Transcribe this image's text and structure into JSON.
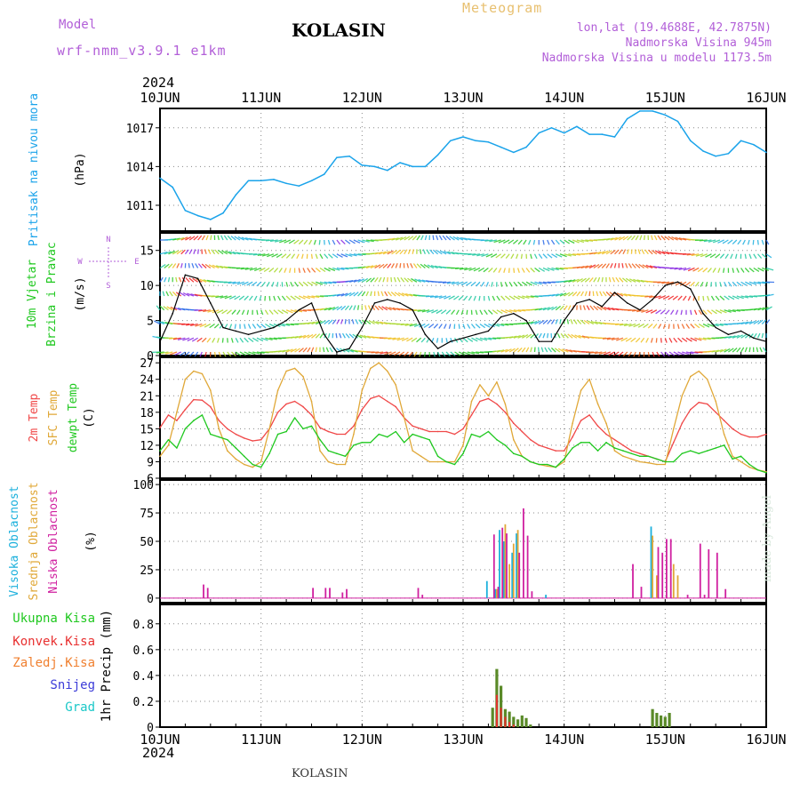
{
  "header": {
    "model_label": "Model",
    "model_name": "wrf-nmm_v3.9.1  e1km",
    "station": "KOLASIN",
    "product": "Meteogram",
    "lonlat": "lon,lat (19.4688E, 42.7875N)",
    "elevation": "Nadmorska Visina 945m",
    "model_elevation": "Nadmorska Visina u modelu 1173.5m",
    "year": "2024",
    "footer_station": "KOLASIN",
    "credit": "made by Angel"
  },
  "colors": {
    "pressure": "#1aa3ea",
    "wind_speed": "#000000",
    "temp_2m": "#f04848",
    "temp_sfc": "#e0a838",
    "dewpoint": "#1fc81f",
    "cloud_high": "#1bb0dc",
    "cloud_mid": "#e0a838",
    "cloud_low": "#d020a0",
    "precip_total": "#5a8a28",
    "precip_conv": "#e83030",
    "axis_label_purple": "#b25fd8",
    "grid": "#888888"
  },
  "chart_data": [
    {
      "id": "pressure",
      "type": "line",
      "title": "",
      "ylabel_lines": [
        "Pritisak na nivou mora",
        "(hPa)"
      ],
      "x_ticks": [
        "10JUN",
        "11JUN",
        "12JUN",
        "13JUN",
        "14JUN",
        "15JUN",
        "16JUN"
      ],
      "ylim": [
        1009,
        1018.5
      ],
      "yticks": [
        1011,
        1014,
        1017
      ],
      "grid": true,
      "series": [
        {
          "values_x_hours": [
            0,
            3,
            6,
            9,
            12,
            15,
            18,
            21,
            24,
            27,
            30,
            33,
            36,
            39,
            42,
            45,
            48,
            51,
            54,
            57,
            60,
            63,
            66,
            69,
            72,
            75,
            78,
            81,
            84,
            87,
            90,
            93,
            96,
            99,
            102,
            105,
            108,
            111,
            114,
            117,
            120,
            123,
            126,
            129,
            132,
            135,
            138,
            141,
            144
          ],
          "values": [
            1013.1,
            1012.4,
            1010.6,
            1010.2,
            1009.9,
            1010.4,
            1011.8,
            1012.9,
            1012.9,
            1013.0,
            1012.7,
            1012.5,
            1012.9,
            1013.4,
            1014.7,
            1014.8,
            1014.1,
            1014.0,
            1013.7,
            1014.3,
            1014.0,
            1014.0,
            1014.9,
            1016.0,
            1016.3,
            1016.0,
            1015.9,
            1015.5,
            1015.1,
            1015.5,
            1016.6,
            1017.0,
            1016.6,
            1017.1,
            1016.5,
            1016.5,
            1016.3,
            1017.7,
            1018.3,
            1018.3,
            1018.0,
            1017.5,
            1016.0,
            1015.2,
            1014.8,
            1015.0,
            1016.0,
            1015.7,
            1015.1
          ]
        }
      ]
    },
    {
      "id": "wind",
      "type": "line",
      "ylabel_lines": [
        "10m Vjetar",
        "Brzina i Pravac",
        "(m/s)"
      ],
      "compass": {
        "north": "N",
        "west": "W",
        "east": "E",
        "south": "S"
      },
      "ylim": [
        0,
        17.5
      ],
      "yticks": [
        0,
        5,
        10,
        15
      ],
      "grid": true,
      "series": [
        {
          "name": "speed",
          "values_x_hours": [
            0,
            3,
            6,
            9,
            12,
            15,
            18,
            21,
            24,
            27,
            30,
            33,
            36,
            39,
            42,
            45,
            48,
            51,
            54,
            57,
            60,
            63,
            66,
            69,
            72,
            75,
            78,
            81,
            84,
            87,
            90,
            93,
            96,
            99,
            102,
            105,
            108,
            111,
            114,
            117,
            120,
            123,
            126,
            129,
            132,
            135,
            138,
            141,
            144
          ],
          "values": [
            2.0,
            6.0,
            11.5,
            11.0,
            7.5,
            4.0,
            3.5,
            3.0,
            3.5,
            4.0,
            5.0,
            6.5,
            7.5,
            3.0,
            0.5,
            1.0,
            4.0,
            7.5,
            8.0,
            7.5,
            6.5,
            3.0,
            1.0,
            2.0,
            2.5,
            3.0,
            3.5,
            5.5,
            6.0,
            5.0,
            2.0,
            2.0,
            5.0,
            7.5,
            8.0,
            7.0,
            9.0,
            7.5,
            6.5,
            8.0,
            10.0,
            10.5,
            9.5,
            6.0,
            4.0,
            3.0,
            3.5,
            2.5,
            2.0
          ]
        }
      ]
    },
    {
      "id": "temperature",
      "type": "line",
      "ylabel_lines": [
        "2m Temp",
        "SFC Temp",
        "dewpt Temp",
        "(C)"
      ],
      "ylim": [
        6,
        28
      ],
      "yticks": [
        6,
        9,
        12,
        15,
        18,
        21,
        24,
        27
      ],
      "grid": true,
      "series": [
        {
          "name": "2m Temp",
          "values_x_hours": [
            0,
            2,
            4,
            6,
            8,
            10,
            12,
            14,
            16,
            18,
            20,
            22,
            24,
            26,
            28,
            30,
            32,
            34,
            36,
            38,
            40,
            42,
            44,
            46,
            48,
            50,
            52,
            54,
            56,
            58,
            60,
            62,
            64,
            66,
            68,
            70,
            72,
            74,
            76,
            78,
            80,
            82,
            84,
            86,
            88,
            90,
            92,
            94,
            96,
            98,
            100,
            102,
            104,
            106,
            108,
            110,
            112,
            114,
            116,
            118,
            120,
            122,
            124,
            126,
            128,
            130,
            132,
            134,
            136,
            138,
            140,
            142,
            144
          ],
          "values": [
            15.2,
            17.5,
            16.5,
            18.5,
            20.3,
            20.2,
            19.0,
            16.5,
            15.0,
            14.0,
            13.3,
            12.8,
            13.0,
            15.0,
            18.0,
            19.5,
            20.0,
            19.0,
            17.5,
            15.2,
            14.5,
            14.0,
            14.0,
            15.5,
            18.5,
            20.5,
            21.0,
            20.0,
            19.0,
            17.0,
            15.5,
            15.0,
            14.5,
            14.5,
            14.5,
            14.0,
            15.0,
            17.5,
            20.0,
            20.5,
            19.5,
            18.0,
            16.0,
            14.5,
            13.0,
            12.0,
            11.5,
            11.0,
            11.0,
            13.5,
            16.5,
            17.5,
            15.5,
            14.0,
            13.0,
            12.0,
            11.0,
            10.5,
            10.0,
            9.5,
            9.0,
            12.5,
            16.0,
            18.5,
            19.8,
            19.5,
            18.0,
            16.5,
            15.0,
            14.0,
            13.5,
            13.5,
            14.0
          ]
        },
        {
          "name": "SFC Temp",
          "values_x_hours": [
            0,
            2,
            4,
            6,
            8,
            10,
            12,
            14,
            16,
            18,
            20,
            22,
            24,
            26,
            28,
            30,
            32,
            34,
            36,
            38,
            40,
            42,
            44,
            46,
            48,
            50,
            52,
            54,
            56,
            58,
            60,
            62,
            64,
            66,
            68,
            70,
            72,
            74,
            76,
            78,
            80,
            82,
            84,
            86,
            88,
            90,
            92,
            94,
            96,
            98,
            100,
            102,
            104,
            106,
            108,
            110,
            112,
            114,
            116,
            118,
            120,
            122,
            124,
            126,
            128,
            130,
            132,
            134,
            136,
            138,
            140,
            142,
            144
          ],
          "values": [
            10.0,
            12.0,
            18.0,
            24.0,
            25.5,
            25.0,
            22.0,
            15.0,
            11.0,
            9.5,
            8.5,
            8.0,
            9.0,
            15.0,
            22.0,
            25.5,
            26.0,
            24.5,
            20.0,
            11.0,
            9.0,
            8.5,
            8.5,
            14.0,
            22.0,
            26.0,
            27.0,
            25.5,
            23.0,
            17.0,
            11.0,
            10.0,
            9.0,
            9.0,
            9.0,
            9.0,
            12.0,
            20.0,
            23.0,
            21.0,
            23.5,
            19.5,
            13.0,
            10.0,
            9.0,
            8.5,
            8.2,
            8.0,
            9.0,
            16.0,
            22.0,
            24.0,
            19.5,
            16.0,
            11.0,
            10.0,
            9.5,
            9.0,
            8.8,
            8.5,
            8.5,
            15.0,
            21.0,
            24.5,
            25.5,
            24.0,
            20.0,
            14.0,
            10.0,
            9.0,
            8.0,
            7.5,
            7.2
          ]
        },
        {
          "name": "dewpt Temp",
          "values_x_hours": [
            0,
            2,
            4,
            6,
            8,
            10,
            12,
            14,
            16,
            18,
            20,
            22,
            24,
            26,
            28,
            30,
            32,
            34,
            36,
            38,
            40,
            42,
            44,
            46,
            48,
            50,
            52,
            54,
            56,
            58,
            60,
            62,
            64,
            66,
            68,
            70,
            72,
            74,
            76,
            78,
            80,
            82,
            84,
            86,
            88,
            90,
            92,
            94,
            96,
            98,
            100,
            102,
            104,
            106,
            108,
            110,
            112,
            114,
            116,
            118,
            120,
            122,
            124,
            126,
            128,
            130,
            132,
            134,
            136,
            138,
            140,
            142,
            144
          ],
          "values": [
            11.0,
            13.0,
            11.5,
            15.0,
            16.5,
            17.5,
            14.0,
            13.5,
            13.0,
            11.5,
            10.0,
            8.5,
            8.0,
            10.5,
            14.0,
            14.5,
            17.0,
            15.0,
            15.5,
            13.0,
            11.0,
            10.5,
            10.0,
            12.0,
            12.5,
            12.5,
            14.0,
            13.5,
            14.5,
            12.5,
            14.0,
            13.5,
            13.0,
            10.0,
            9.0,
            8.5,
            10.5,
            14.0,
            13.5,
            14.5,
            13.0,
            12.0,
            10.5,
            10.0,
            9.0,
            8.5,
            8.5,
            8.0,
            9.5,
            11.5,
            12.5,
            12.5,
            11.0,
            12.5,
            11.5,
            11.0,
            10.5,
            10.0,
            10.0,
            9.5,
            9.0,
            9.0,
            10.5,
            11.0,
            10.5,
            11.0,
            11.5,
            12.0,
            9.5,
            10.0,
            8.5,
            7.5,
            7.0
          ]
        }
      ]
    },
    {
      "id": "clouds",
      "type": "bar",
      "ylabel_lines": [
        "Visoka Oblacnost",
        "Srednja Oblacnost",
        "Niska Oblacnost",
        "(%)"
      ],
      "ylim": [
        -4,
        104
      ],
      "yticks": [
        0,
        25,
        50,
        75,
        100
      ],
      "grid": true,
      "series": [
        {
          "name": "Visoka Oblacnost",
          "values_x_hours": [
            78,
            80,
            81,
            82,
            84,
            85,
            92,
            117
          ],
          "values": [
            15,
            8,
            60,
            50,
            40,
            57,
            3,
            63
          ]
        },
        {
          "name": "Srednja Oblacnost",
          "values_x_hours": [
            80,
            82,
            83,
            84,
            85,
            117,
            118,
            122,
            123
          ],
          "values": [
            8,
            65,
            30,
            48,
            60,
            55,
            20,
            30,
            20
          ]
        },
        {
          "name": "Niska Oblacnost",
          "values_x_hours": [
            10,
            11,
            36,
            39,
            40,
            43,
            44,
            61,
            62,
            79,
            80,
            81,
            82,
            85,
            86,
            87,
            88,
            112,
            114,
            118,
            119,
            120,
            121,
            125,
            128,
            129,
            130,
            132,
            134
          ],
          "values": [
            12,
            9,
            9,
            9,
            9,
            5,
            8,
            9,
            3,
            56,
            10,
            62,
            57,
            40,
            79,
            55,
            6,
            30,
            10,
            45,
            40,
            52,
            52,
            3,
            48,
            3,
            43,
            40,
            8
          ]
        }
      ]
    },
    {
      "id": "precip",
      "type": "bar",
      "ylabel_lines": [
        "Ukupna Kisa",
        "Konvek.Kisa",
        "Zaledj.Kisa",
        "Snijeg",
        "Grad",
        "1hr Precip (mm)"
      ],
      "ylim": [
        0,
        0.95
      ],
      "yticks": [
        0,
        0.2,
        0.4,
        0.6,
        0.8
      ],
      "grid": true,
      "series": [
        {
          "name": "Ukupna Kisa",
          "values_x_hours": [
            79,
            80,
            81,
            82,
            83,
            84,
            85,
            86,
            87,
            88,
            117,
            118,
            119,
            120,
            121
          ],
          "values": [
            0.15,
            0.45,
            0.32,
            0.14,
            0.12,
            0.08,
            0.06,
            0.09,
            0.07,
            0.02,
            0.14,
            0.11,
            0.09,
            0.08,
            0.11
          ]
        },
        {
          "name": "Konvek.Kisa",
          "values_x_hours": [
            80,
            81,
            82,
            83,
            84
          ],
          "values": [
            0.25,
            0.15,
            0.08,
            0.04,
            0.02
          ]
        }
      ]
    }
  ]
}
